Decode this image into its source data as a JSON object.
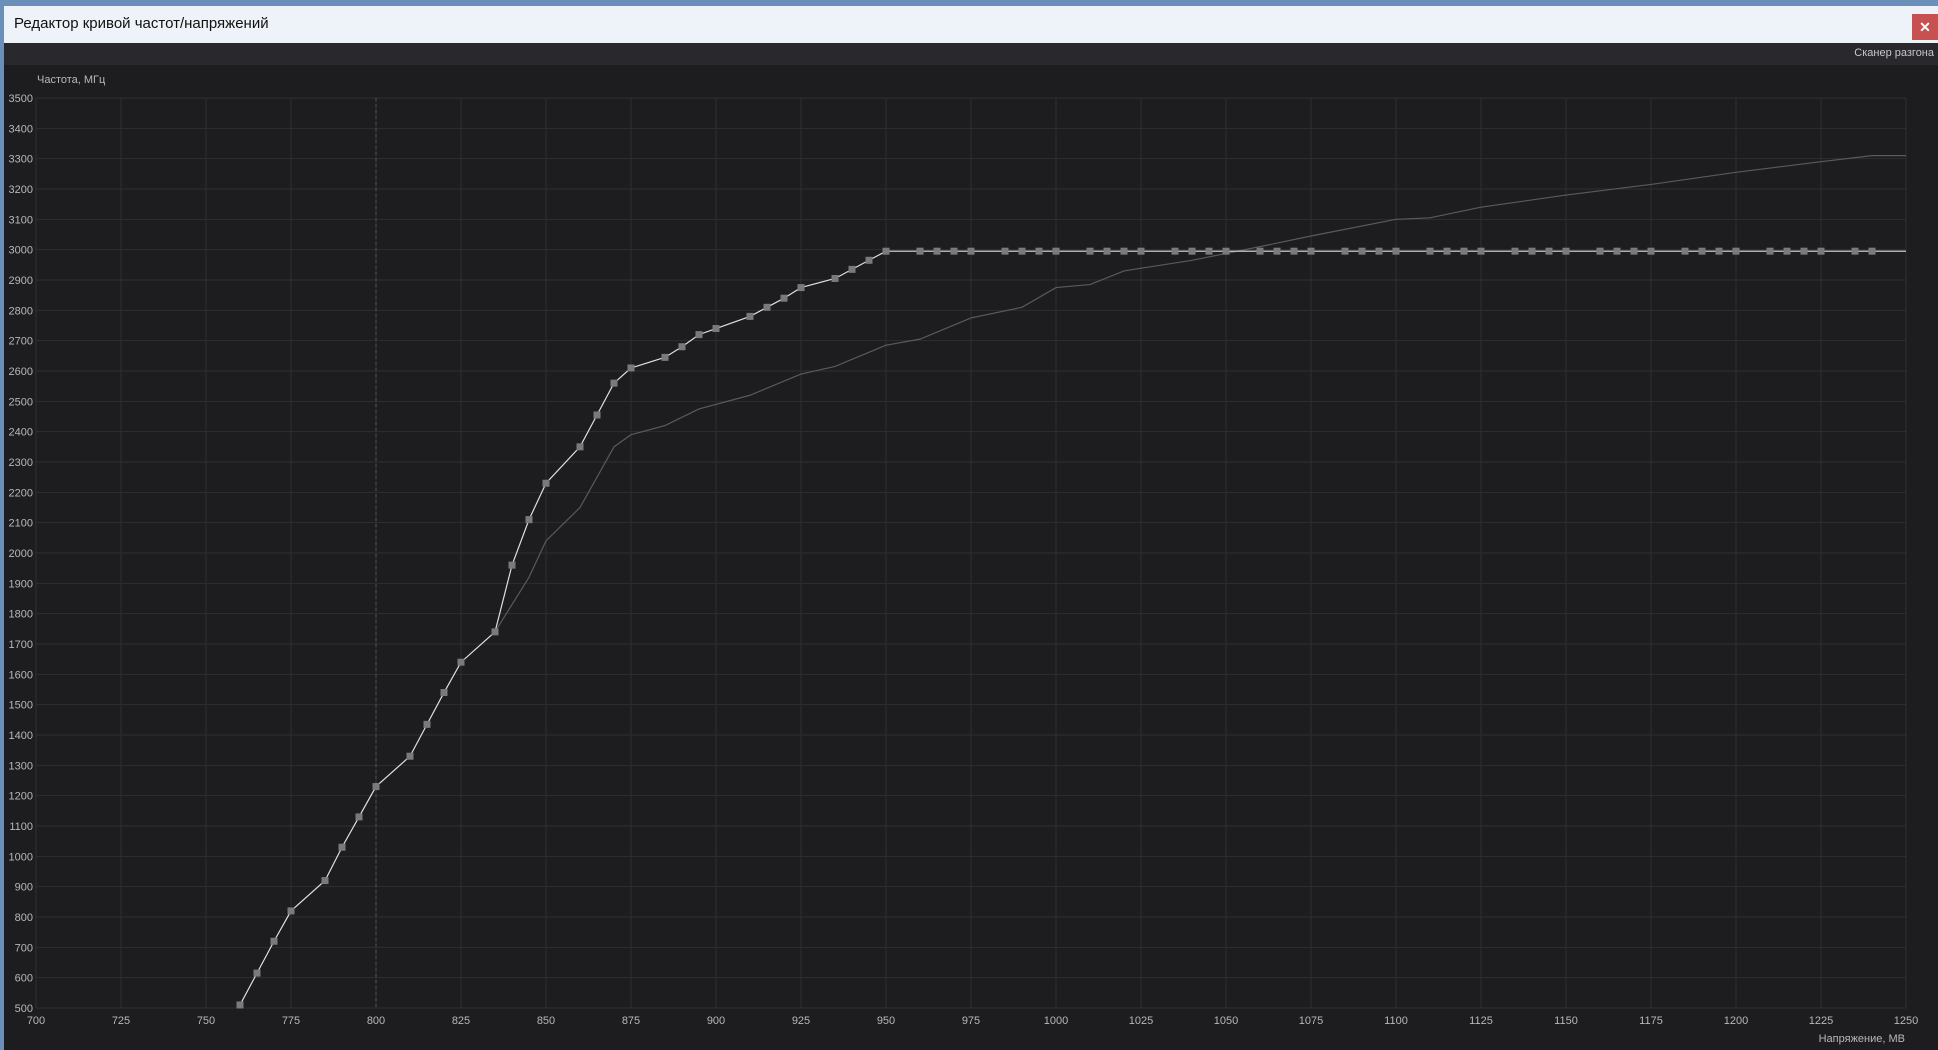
{
  "window": {
    "title": "Редактор кривой частот/напряжений",
    "close_icon": "close-icon",
    "toolbar_button": "Сканер разгона"
  },
  "chart_data": {
    "type": "line",
    "xlabel": "Напряжение, МВ",
    "ylabel": "Частота, МГц",
    "xlim": [
      700,
      1250
    ],
    "ylim": [
      500,
      3500
    ],
    "xticks": [
      700,
      725,
      750,
      775,
      800,
      825,
      850,
      875,
      900,
      925,
      950,
      975,
      1000,
      1025,
      1050,
      1075,
      1100,
      1125,
      1150,
      1175,
      1200,
      1225,
      1250
    ],
    "yticks": [
      500,
      600,
      700,
      800,
      900,
      1000,
      1100,
      1200,
      1300,
      1400,
      1500,
      1600,
      1700,
      1800,
      1900,
      2000,
      2100,
      2200,
      2300,
      2400,
      2500,
      2600,
      2700,
      2800,
      2900,
      3000,
      3100,
      3200,
      3300,
      3400,
      3500
    ],
    "grid": true,
    "marker_line": 800,
    "colors": {
      "curve": "#e0e0e0",
      "marker": "#7a7a7a",
      "reference": "#5a5a5e",
      "grid": "#2e2e32"
    },
    "series": [
      {
        "role": "edited-curve",
        "points": [
          [
            760,
            510
          ],
          [
            765,
            615
          ],
          [
            770,
            720
          ],
          [
            775,
            820
          ],
          [
            785,
            920
          ],
          [
            790,
            1030
          ],
          [
            795,
            1130
          ],
          [
            800,
            1230
          ],
          [
            810,
            1330
          ],
          [
            815,
            1435
          ],
          [
            820,
            1540
          ],
          [
            825,
            1640
          ],
          [
            835,
            1740
          ],
          [
            840,
            1960
          ],
          [
            845,
            2110
          ],
          [
            850,
            2230
          ],
          [
            860,
            2350
          ],
          [
            865,
            2455
          ],
          [
            870,
            2560
          ],
          [
            875,
            2610
          ],
          [
            885,
            2645
          ],
          [
            890,
            2680
          ],
          [
            895,
            2720
          ],
          [
            900,
            2740
          ],
          [
            910,
            2780
          ],
          [
            915,
            2810
          ],
          [
            920,
            2840
          ],
          [
            925,
            2875
          ],
          [
            935,
            2905
          ],
          [
            940,
            2935
          ],
          [
            945,
            2965
          ],
          [
            950,
            2995
          ],
          [
            960,
            2995
          ],
          [
            965,
            2995
          ],
          [
            970,
            2995
          ],
          [
            975,
            2995
          ],
          [
            985,
            2995
          ],
          [
            990,
            2995
          ],
          [
            995,
            2995
          ],
          [
            1000,
            2995
          ],
          [
            1010,
            2995
          ],
          [
            1015,
            2995
          ],
          [
            1020,
            2995
          ],
          [
            1025,
            2995
          ],
          [
            1035,
            2995
          ],
          [
            1040,
            2995
          ],
          [
            1045,
            2995
          ],
          [
            1050,
            2995
          ],
          [
            1060,
            2995
          ],
          [
            1065,
            2995
          ],
          [
            1070,
            2995
          ],
          [
            1075,
            2995
          ],
          [
            1085,
            2995
          ],
          [
            1090,
            2995
          ],
          [
            1095,
            2995
          ],
          [
            1100,
            2995
          ],
          [
            1110,
            2995
          ],
          [
            1115,
            2995
          ],
          [
            1120,
            2995
          ],
          [
            1125,
            2995
          ],
          [
            1135,
            2995
          ],
          [
            1140,
            2995
          ],
          [
            1145,
            2995
          ],
          [
            1150,
            2995
          ],
          [
            1160,
            2995
          ],
          [
            1165,
            2995
          ],
          [
            1170,
            2995
          ],
          [
            1175,
            2995
          ],
          [
            1185,
            2995
          ],
          [
            1190,
            2995
          ],
          [
            1195,
            2995
          ],
          [
            1200,
            2995
          ],
          [
            1210,
            2995
          ],
          [
            1215,
            2995
          ],
          [
            1220,
            2995
          ],
          [
            1225,
            2995
          ],
          [
            1235,
            2995
          ],
          [
            1240,
            2995
          ]
        ],
        "line_end": [
          1250,
          2995
        ]
      },
      {
        "role": "default-curve",
        "points": [
          [
            835,
            1740
          ],
          [
            845,
            1920
          ],
          [
            850,
            2040
          ],
          [
            860,
            2150
          ],
          [
            870,
            2350
          ],
          [
            875,
            2390
          ],
          [
            885,
            2420
          ],
          [
            895,
            2475
          ],
          [
            910,
            2520
          ],
          [
            925,
            2590
          ],
          [
            935,
            2615
          ],
          [
            950,
            2685
          ],
          [
            960,
            2705
          ],
          [
            975,
            2775
          ],
          [
            990,
            2810
          ],
          [
            1000,
            2875
          ],
          [
            1010,
            2885
          ],
          [
            1020,
            2930
          ],
          [
            1040,
            2965
          ],
          [
            1060,
            3010
          ],
          [
            1075,
            3045
          ],
          [
            1100,
            3100
          ],
          [
            1110,
            3105
          ],
          [
            1125,
            3140
          ],
          [
            1150,
            3180
          ],
          [
            1175,
            3215
          ],
          [
            1200,
            3255
          ],
          [
            1225,
            3290
          ],
          [
            1240,
            3310
          ],
          [
            1250,
            3310
          ]
        ]
      }
    ]
  }
}
